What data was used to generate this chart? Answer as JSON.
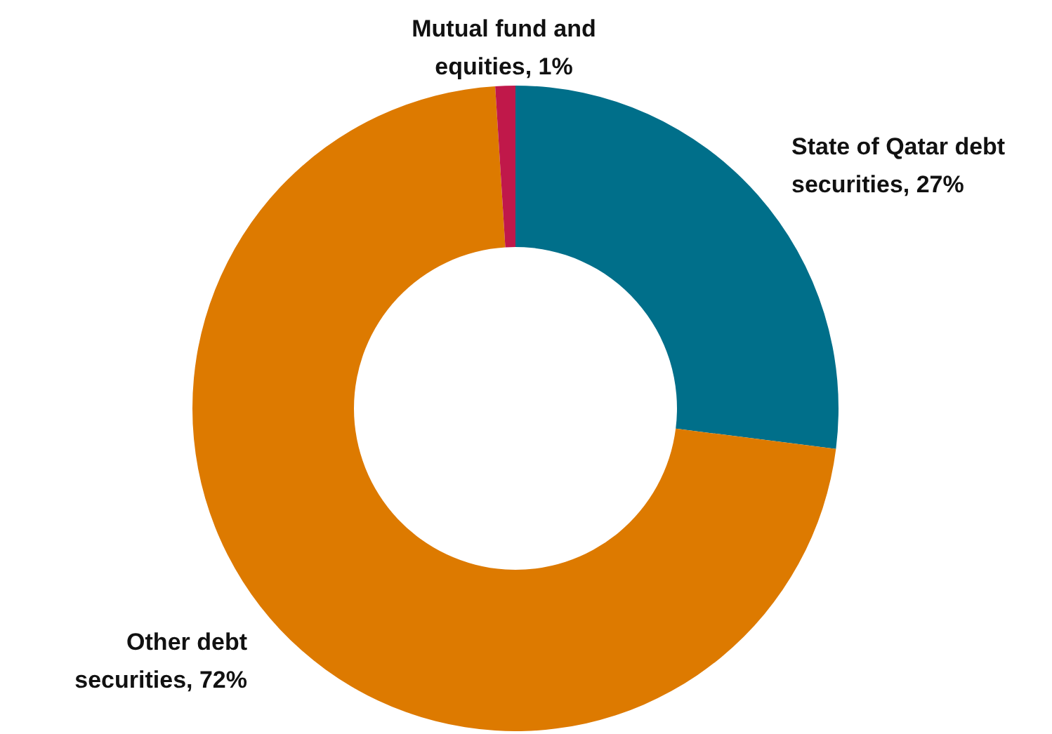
{
  "chart_data": {
    "type": "donut",
    "categories": [
      "State of Qatar debt securities",
      "Other debt securities",
      "Mutual fund and equities"
    ],
    "values": [
      27,
      72,
      1
    ],
    "value_labels": [
      "27%",
      "72%",
      "1%"
    ],
    "colors": [
      "#006f8a",
      "#dd7a00",
      "#c0184a"
    ]
  }
}
